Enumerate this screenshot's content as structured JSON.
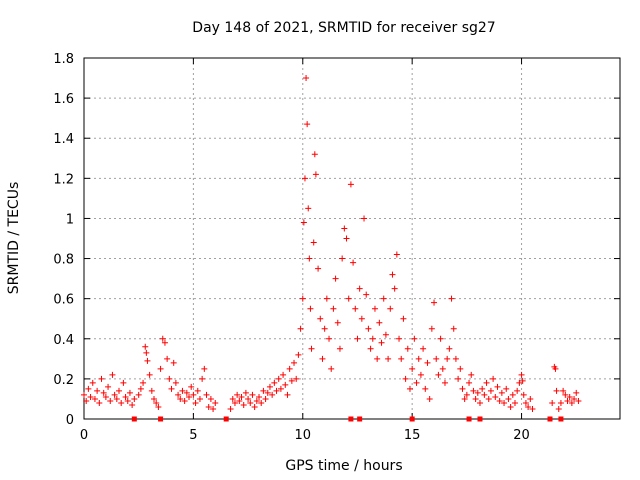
{
  "chart_data": {
    "type": "scatter",
    "title": "Day 148 of 2021, SRMTID for receiver sg27",
    "xlabel": "GPS time / hours",
    "ylabel": "SRMTID / TECUs",
    "xlim": [
      0,
      24.5
    ],
    "ylim": [
      0,
      1.8
    ],
    "xticks": [
      0,
      5,
      10,
      15,
      20
    ],
    "xtick_labels": [
      "0",
      "5",
      "10",
      "15",
      "20"
    ],
    "yticks": [
      0,
      0.2,
      0.4,
      0.6,
      0.8,
      1,
      1.2,
      1.4,
      1.6,
      1.8
    ],
    "ytick_labels": [
      "0",
      "0.2",
      "0.4",
      "0.6",
      "0.8",
      "1",
      "1.2",
      "1.4",
      "1.6",
      "1.8"
    ],
    "grid": true,
    "marker": "+",
    "color": "#ff0000",
    "series": [
      {
        "name": "SRMTID",
        "points": [
          [
            0.0,
            0.12
          ],
          [
            0.1,
            0.09
          ],
          [
            0.2,
            0.15
          ],
          [
            0.3,
            0.11
          ],
          [
            0.4,
            0.18
          ],
          [
            0.5,
            0.1
          ],
          [
            0.6,
            0.14
          ],
          [
            0.7,
            0.08
          ],
          [
            0.8,
            0.2
          ],
          [
            0.9,
            0.13
          ],
          [
            1.0,
            0.11
          ],
          [
            1.1,
            0.16
          ],
          [
            1.2,
            0.09
          ],
          [
            1.3,
            0.22
          ],
          [
            1.4,
            0.12
          ],
          [
            1.5,
            0.1
          ],
          [
            1.6,
            0.14
          ],
          [
            1.7,
            0.08
          ],
          [
            1.8,
            0.18
          ],
          [
            1.9,
            0.11
          ],
          [
            2.0,
            0.09
          ],
          [
            2.1,
            0.13
          ],
          [
            2.2,
            0.07
          ],
          [
            2.3,
            0.1
          ],
          [
            2.5,
            0.12
          ],
          [
            2.6,
            0.15
          ],
          [
            2.7,
            0.18
          ],
          [
            2.8,
            0.36
          ],
          [
            2.85,
            0.33
          ],
          [
            2.9,
            0.29
          ],
          [
            3.0,
            0.22
          ],
          [
            3.1,
            0.14
          ],
          [
            3.2,
            0.1
          ],
          [
            3.3,
            0.08
          ],
          [
            3.4,
            0.06
          ],
          [
            3.5,
            0.25
          ],
          [
            3.6,
            0.4
          ],
          [
            3.7,
            0.38
          ],
          [
            3.8,
            0.3
          ],
          [
            3.9,
            0.2
          ],
          [
            4.0,
            0.15
          ],
          [
            4.1,
            0.28
          ],
          [
            4.2,
            0.18
          ],
          [
            4.3,
            0.12
          ],
          [
            4.4,
            0.1
          ],
          [
            4.5,
            0.14
          ],
          [
            4.6,
            0.09
          ],
          [
            4.7,
            0.13
          ],
          [
            4.8,
            0.11
          ],
          [
            4.9,
            0.16
          ],
          [
            5.0,
            0.12
          ],
          [
            5.1,
            0.08
          ],
          [
            5.2,
            0.14
          ],
          [
            5.3,
            0.1
          ],
          [
            5.4,
            0.2
          ],
          [
            5.5,
            0.25
          ],
          [
            5.6,
            0.12
          ],
          [
            5.7,
            0.06
          ],
          [
            5.8,
            0.1
          ],
          [
            5.9,
            0.05
          ],
          [
            6.0,
            0.08
          ],
          [
            6.7,
            0.05
          ],
          [
            6.8,
            0.1
          ],
          [
            6.9,
            0.08
          ],
          [
            7.0,
            0.12
          ],
          [
            7.1,
            0.09
          ],
          [
            7.2,
            0.11
          ],
          [
            7.3,
            0.07
          ],
          [
            7.4,
            0.13
          ],
          [
            7.5,
            0.1
          ],
          [
            7.6,
            0.08
          ],
          [
            7.7,
            0.12
          ],
          [
            7.8,
            0.06
          ],
          [
            7.9,
            0.09
          ],
          [
            8.0,
            0.11
          ],
          [
            8.1,
            0.08
          ],
          [
            8.2,
            0.14
          ],
          [
            8.3,
            0.1
          ],
          [
            8.4,
            0.13
          ],
          [
            8.5,
            0.16
          ],
          [
            8.6,
            0.12
          ],
          [
            8.7,
            0.18
          ],
          [
            8.8,
            0.14
          ],
          [
            8.9,
            0.2
          ],
          [
            9.0,
            0.15
          ],
          [
            9.1,
            0.22
          ],
          [
            9.2,
            0.17
          ],
          [
            9.3,
            0.12
          ],
          [
            9.4,
            0.25
          ],
          [
            9.5,
            0.19
          ],
          [
            9.6,
            0.28
          ],
          [
            9.7,
            0.2
          ],
          [
            9.8,
            0.32
          ],
          [
            9.9,
            0.45
          ],
          [
            10.0,
            0.6
          ],
          [
            10.05,
            0.98
          ],
          [
            10.1,
            1.2
          ],
          [
            10.15,
            1.7
          ],
          [
            10.2,
            1.47
          ],
          [
            10.25,
            1.05
          ],
          [
            10.3,
            0.8
          ],
          [
            10.35,
            0.55
          ],
          [
            10.4,
            0.35
          ],
          [
            10.5,
            0.88
          ],
          [
            10.55,
            1.32
          ],
          [
            10.6,
            1.22
          ],
          [
            10.7,
            0.75
          ],
          [
            10.8,
            0.5
          ],
          [
            10.9,
            0.3
          ],
          [
            11.0,
            0.45
          ],
          [
            11.1,
            0.6
          ],
          [
            11.2,
            0.4
          ],
          [
            11.3,
            0.25
          ],
          [
            11.4,
            0.55
          ],
          [
            11.5,
            0.7
          ],
          [
            11.6,
            0.48
          ],
          [
            11.7,
            0.35
          ],
          [
            11.8,
            0.8
          ],
          [
            11.9,
            0.95
          ],
          [
            12.0,
            0.9
          ],
          [
            12.1,
            0.6
          ],
          [
            12.2,
            1.17
          ],
          [
            12.3,
            0.78
          ],
          [
            12.4,
            0.55
          ],
          [
            12.5,
            0.4
          ],
          [
            12.6,
            0.65
          ],
          [
            12.7,
            0.5
          ],
          [
            12.8,
            1.0
          ],
          [
            12.9,
            0.62
          ],
          [
            13.0,
            0.45
          ],
          [
            13.1,
            0.35
          ],
          [
            13.2,
            0.4
          ],
          [
            13.3,
            0.55
          ],
          [
            13.4,
            0.3
          ],
          [
            13.5,
            0.48
          ],
          [
            13.6,
            0.38
          ],
          [
            13.7,
            0.6
          ],
          [
            13.8,
            0.42
          ],
          [
            13.9,
            0.3
          ],
          [
            14.0,
            0.55
          ],
          [
            14.1,
            0.72
          ],
          [
            14.2,
            0.65
          ],
          [
            14.3,
            0.82
          ],
          [
            14.4,
            0.4
          ],
          [
            14.5,
            0.3
          ],
          [
            14.6,
            0.5
          ],
          [
            14.7,
            0.2
          ],
          [
            14.8,
            0.35
          ],
          [
            14.9,
            0.15
          ],
          [
            15.0,
            0.25
          ],
          [
            15.1,
            0.4
          ],
          [
            15.2,
            0.18
          ],
          [
            15.3,
            0.3
          ],
          [
            15.4,
            0.22
          ],
          [
            15.5,
            0.35
          ],
          [
            15.6,
            0.15
          ],
          [
            15.7,
            0.28
          ],
          [
            15.8,
            0.1
          ],
          [
            15.9,
            0.45
          ],
          [
            16.0,
            0.58
          ],
          [
            16.1,
            0.3
          ],
          [
            16.2,
            0.22
          ],
          [
            16.3,
            0.4
          ],
          [
            16.4,
            0.25
          ],
          [
            16.5,
            0.18
          ],
          [
            16.6,
            0.3
          ],
          [
            16.7,
            0.35
          ],
          [
            16.8,
            0.6
          ],
          [
            16.9,
            0.45
          ],
          [
            17.0,
            0.3
          ],
          [
            17.1,
            0.2
          ],
          [
            17.2,
            0.25
          ],
          [
            17.3,
            0.15
          ],
          [
            17.4,
            0.1
          ],
          [
            17.5,
            0.12
          ],
          [
            17.6,
            0.18
          ],
          [
            17.7,
            0.22
          ],
          [
            17.8,
            0.14
          ],
          [
            17.9,
            0.1
          ],
          [
            18.0,
            0.13
          ],
          [
            18.1,
            0.08
          ],
          [
            18.2,
            0.15
          ],
          [
            18.3,
            0.12
          ],
          [
            18.4,
            0.18
          ],
          [
            18.5,
            0.1
          ],
          [
            18.6,
            0.14
          ],
          [
            18.7,
            0.2
          ],
          [
            18.8,
            0.11
          ],
          [
            18.9,
            0.16
          ],
          [
            19.0,
            0.09
          ],
          [
            19.1,
            0.13
          ],
          [
            19.2,
            0.08
          ],
          [
            19.3,
            0.15
          ],
          [
            19.4,
            0.1
          ],
          [
            19.5,
            0.06
          ],
          [
            19.6,
            0.12
          ],
          [
            19.7,
            0.08
          ],
          [
            19.8,
            0.14
          ],
          [
            19.9,
            0.18
          ],
          [
            20.0,
            0.22
          ],
          [
            20.05,
            0.19
          ],
          [
            20.1,
            0.12
          ],
          [
            20.2,
            0.08
          ],
          [
            20.3,
            0.06
          ],
          [
            20.4,
            0.1
          ],
          [
            20.5,
            0.05
          ],
          [
            21.4,
            0.08
          ],
          [
            21.5,
            0.26
          ],
          [
            21.55,
            0.25
          ],
          [
            21.6,
            0.14
          ],
          [
            21.7,
            0.05
          ],
          [
            21.8,
            0.08
          ],
          [
            21.9,
            0.14
          ],
          [
            22.0,
            0.12
          ],
          [
            22.1,
            0.09
          ],
          [
            22.2,
            0.11
          ],
          [
            22.3,
            0.08
          ],
          [
            22.4,
            0.1
          ],
          [
            22.5,
            0.13
          ],
          [
            22.6,
            0.09
          ]
        ]
      }
    ],
    "gap_markers_x": [
      2.3,
      3.5,
      6.5,
      12.2,
      12.6,
      15.0,
      17.6,
      18.1,
      21.3,
      21.8
    ]
  }
}
